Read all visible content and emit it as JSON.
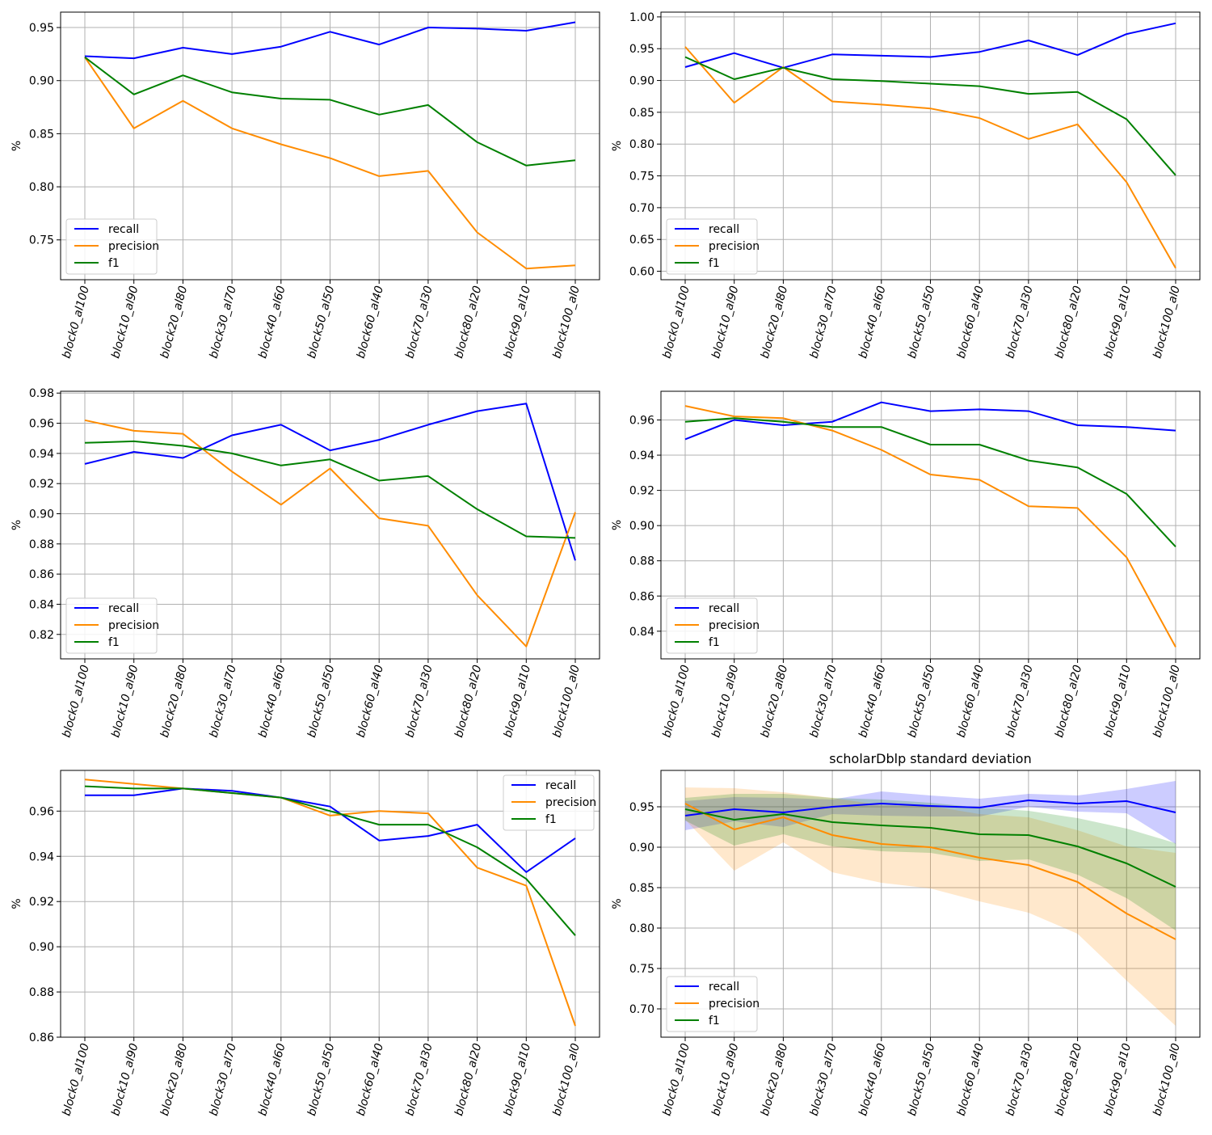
{
  "colors": {
    "recall": "#0000ff",
    "precision": "#ff8c00",
    "f1": "#008000",
    "grid": "#b0b0b0"
  },
  "chart_data": [
    {
      "type": "line",
      "title": "",
      "xlabel": "",
      "ylabel": "%",
      "categories": [
        "block0_al100",
        "block10_al90",
        "block20_al80",
        "block30_al70",
        "block40_al60",
        "block50_al50",
        "block60_al40",
        "block70_al30",
        "block80_al20",
        "block90_al10",
        "block100_al0"
      ],
      "ylim": [
        0.7125,
        0.9645
      ],
      "yticks": [
        0.75,
        0.8,
        0.85,
        0.9,
        0.95
      ],
      "ytick_labels": [
        "0.75",
        "0.80",
        "0.85",
        "0.90",
        "0.95"
      ],
      "grid": true,
      "legend": "lower left",
      "series": [
        {
          "name": "recall",
          "color": "#0000ff",
          "values": [
            0.923,
            0.921,
            0.931,
            0.925,
            0.932,
            0.946,
            0.934,
            0.95,
            0.949,
            0.947,
            0.955
          ]
        },
        {
          "name": "precision",
          "color": "#ff8c00",
          "values": [
            0.922,
            0.855,
            0.881,
            0.855,
            0.84,
            0.827,
            0.81,
            0.815,
            0.757,
            0.723,
            0.726
          ]
        },
        {
          "name": "f1",
          "color": "#008000",
          "values": [
            0.922,
            0.887,
            0.905,
            0.889,
            0.883,
            0.882,
            0.868,
            0.877,
            0.842,
            0.82,
            0.825
          ]
        }
      ]
    },
    {
      "type": "line",
      "title": "",
      "xlabel": "",
      "ylabel": "%",
      "categories": [
        "block0_al100",
        "block10_al90",
        "block20_al80",
        "block30_al70",
        "block40_al60",
        "block50_al50",
        "block60_al40",
        "block70_al30",
        "block80_al20",
        "block90_al10",
        "block100_al0"
      ],
      "ylim": [
        0.5867,
        1.0075
      ],
      "yticks": [
        0.6,
        0.65,
        0.7,
        0.75,
        0.8,
        0.85,
        0.9,
        0.95,
        1.0
      ],
      "ytick_labels": [
        "0.60",
        "0.65",
        "0.70",
        "0.75",
        "0.80",
        "0.85",
        "0.90",
        "0.95",
        "1.00"
      ],
      "grid": true,
      "legend": "lower left",
      "series": [
        {
          "name": "recall",
          "color": "#0000ff",
          "values": [
            0.921,
            0.943,
            0.92,
            0.941,
            0.939,
            0.937,
            0.945,
            0.963,
            0.94,
            0.973,
            0.99
          ]
        },
        {
          "name": "precision",
          "color": "#ff8c00",
          "values": [
            0.953,
            0.865,
            0.921,
            0.867,
            0.862,
            0.856,
            0.841,
            0.808,
            0.831,
            0.74,
            0.605
          ]
        },
        {
          "name": "f1",
          "color": "#008000",
          "values": [
            0.937,
            0.902,
            0.92,
            0.902,
            0.899,
            0.895,
            0.891,
            0.879,
            0.882,
            0.839,
            0.751
          ]
        }
      ]
    },
    {
      "type": "line",
      "title": "",
      "xlabel": "",
      "ylabel": "%",
      "categories": [
        "block0_al100",
        "block10_al90",
        "block20_al80",
        "block30_al70",
        "block40_al60",
        "block50_al50",
        "block60_al40",
        "block70_al30",
        "block80_al20",
        "block90_al10",
        "block100_al0"
      ],
      "ylim": [
        0.8038,
        0.9812
      ],
      "yticks": [
        0.82,
        0.84,
        0.86,
        0.88,
        0.9,
        0.92,
        0.94,
        0.96,
        0.98
      ],
      "ytick_labels": [
        "0.82",
        "0.84",
        "0.86",
        "0.88",
        "0.90",
        "0.92",
        "0.94",
        "0.96",
        "0.98"
      ],
      "grid": true,
      "legend": "lower left",
      "series": [
        {
          "name": "recall",
          "color": "#0000ff",
          "values": [
            0.933,
            0.941,
            0.937,
            0.952,
            0.959,
            0.942,
            0.949,
            0.959,
            0.968,
            0.973,
            0.869
          ]
        },
        {
          "name": "precision",
          "color": "#ff8c00",
          "values": [
            0.962,
            0.955,
            0.953,
            0.928,
            0.906,
            0.93,
            0.897,
            0.892,
            0.846,
            0.812,
            0.901
          ]
        },
        {
          "name": "f1",
          "color": "#008000",
          "values": [
            0.947,
            0.948,
            0.945,
            0.94,
            0.932,
            0.936,
            0.922,
            0.925,
            0.903,
            0.885,
            0.884
          ]
        }
      ]
    },
    {
      "type": "line",
      "title": "",
      "xlabel": "",
      "ylabel": "%",
      "categories": [
        "block0_al100",
        "block10_al90",
        "block20_al80",
        "block30_al70",
        "block40_al60",
        "block50_al50",
        "block60_al40",
        "block70_al30",
        "block80_al20",
        "block90_al10",
        "block100_al0"
      ],
      "ylim": [
        0.8243,
        0.9763
      ],
      "yticks": [
        0.84,
        0.86,
        0.88,
        0.9,
        0.92,
        0.94,
        0.96
      ],
      "ytick_labels": [
        "0.84",
        "0.86",
        "0.88",
        "0.90",
        "0.92",
        "0.94",
        "0.96"
      ],
      "grid": true,
      "legend": "lower left",
      "series": [
        {
          "name": "recall",
          "color": "#0000ff",
          "values": [
            0.949,
            0.96,
            0.957,
            0.959,
            0.97,
            0.965,
            0.966,
            0.965,
            0.957,
            0.956,
            0.954
          ]
        },
        {
          "name": "precision",
          "color": "#ff8c00",
          "values": [
            0.968,
            0.962,
            0.961,
            0.954,
            0.943,
            0.929,
            0.926,
            0.911,
            0.91,
            0.882,
            0.831
          ]
        },
        {
          "name": "f1",
          "color": "#008000",
          "values": [
            0.959,
            0.961,
            0.959,
            0.956,
            0.956,
            0.946,
            0.946,
            0.937,
            0.933,
            0.918,
            0.888
          ]
        }
      ]
    },
    {
      "type": "line",
      "title": "",
      "xlabel": "",
      "ylabel": "%",
      "categories": [
        "block0_al100",
        "block10_al90",
        "block20_al80",
        "block30_al70",
        "block40_al60",
        "block50_al50",
        "block60_al40",
        "block70_al30",
        "block80_al20",
        "block90_al10",
        "block100_al0"
      ],
      "ylim": [
        0.86,
        0.978
      ],
      "yticks": [
        0.86,
        0.88,
        0.9,
        0.92,
        0.94,
        0.96
      ],
      "ytick_labels": [
        "0.86",
        "0.88",
        "0.90",
        "0.92",
        "0.94",
        "0.96"
      ],
      "grid": true,
      "legend": "upper right",
      "series": [
        {
          "name": "recall",
          "color": "#0000ff",
          "values": [
            0.967,
            0.967,
            0.97,
            0.969,
            0.966,
            0.962,
            0.947,
            0.949,
            0.954,
            0.933,
            0.948
          ]
        },
        {
          "name": "precision",
          "color": "#ff8c00",
          "values": [
            0.974,
            0.972,
            0.97,
            0.968,
            0.966,
            0.958,
            0.96,
            0.959,
            0.935,
            0.927,
            0.865
          ]
        },
        {
          "name": "f1",
          "color": "#008000",
          "values": [
            0.971,
            0.97,
            0.97,
            0.968,
            0.966,
            0.96,
            0.954,
            0.954,
            0.944,
            0.93,
            0.905
          ]
        }
      ]
    },
    {
      "type": "area",
      "title": "scholarDblp standard deviation",
      "xlabel": "",
      "ylabel": "%",
      "categories": [
        "block0_al100",
        "block10_al90",
        "block20_al80",
        "block30_al70",
        "block40_al60",
        "block50_al50",
        "block60_al40",
        "block70_al30",
        "block80_al20",
        "block90_al10",
        "block100_al0"
      ],
      "ylim": [
        0.665,
        0.995
      ],
      "yticks": [
        0.7,
        0.75,
        0.8,
        0.85,
        0.9,
        0.95
      ],
      "ytick_labels": [
        "0.70",
        "0.75",
        "0.80",
        "0.85",
        "0.90",
        "0.95"
      ],
      "grid": true,
      "legend": "lower left",
      "series": [
        {
          "name": "recall",
          "color": "#0000ff",
          "values": [
            0.939,
            0.947,
            0.943,
            0.95,
            0.954,
            0.951,
            0.949,
            0.958,
            0.954,
            0.957,
            0.943
          ],
          "lower": [
            0.921,
            0.932,
            0.925,
            0.941,
            0.939,
            0.938,
            0.938,
            0.95,
            0.944,
            0.942,
            0.904
          ],
          "upper": [
            0.957,
            0.962,
            0.961,
            0.959,
            0.969,
            0.964,
            0.96,
            0.966,
            0.964,
            0.972,
            0.982
          ]
        },
        {
          "name": "precision",
          "color": "#ff8c00",
          "values": [
            0.954,
            0.922,
            0.937,
            0.915,
            0.904,
            0.9,
            0.887,
            0.878,
            0.857,
            0.818,
            0.786
          ],
          "lower": [
            0.934,
            0.871,
            0.906,
            0.869,
            0.856,
            0.849,
            0.833,
            0.819,
            0.793,
            0.735,
            0.679
          ],
          "upper": [
            0.974,
            0.973,
            0.968,
            0.961,
            0.952,
            0.951,
            0.941,
            0.937,
            0.921,
            0.901,
            0.893
          ]
        },
        {
          "name": "f1",
          "color": "#008000",
          "values": [
            0.947,
            0.934,
            0.941,
            0.931,
            0.927,
            0.924,
            0.916,
            0.915,
            0.901,
            0.88,
            0.851
          ],
          "lower": [
            0.933,
            0.902,
            0.916,
            0.901,
            0.895,
            0.893,
            0.883,
            0.885,
            0.866,
            0.837,
            0.797
          ],
          "upper": [
            0.961,
            0.966,
            0.966,
            0.961,
            0.959,
            0.955,
            0.949,
            0.945,
            0.936,
            0.923,
            0.905
          ]
        }
      ]
    }
  ]
}
